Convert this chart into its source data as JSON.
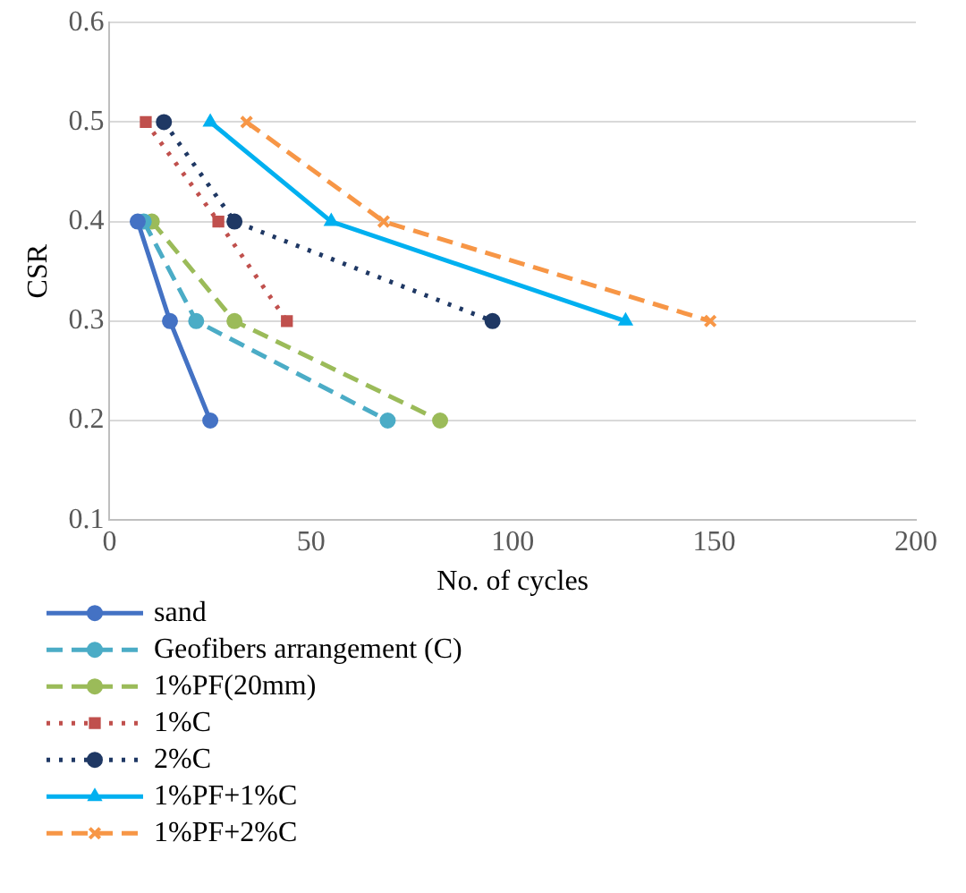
{
  "chart_data": {
    "type": "line",
    "xlabel": "No. of cycles",
    "ylabel": "CSR",
    "xlim": [
      0,
      200
    ],
    "xticks": [
      0,
      50,
      100,
      150,
      200
    ],
    "ylim": [
      0.1,
      0.6
    ],
    "yticks": [
      0.1,
      0.2,
      0.3,
      0.4,
      0.5,
      0.6
    ],
    "grid": "y",
    "legend": "bottom",
    "series": [
      {
        "name": "sand",
        "color": "#4472c4",
        "marker": "circle",
        "line_style": "solid",
        "x": [
          7,
          15,
          25
        ],
        "values": [
          0.4,
          0.3,
          0.2
        ]
      },
      {
        "name": "Geofibers arrangement (C)",
        "color": "#4bacc6",
        "marker": "circle",
        "line_style": "dashed",
        "x": [
          8.5,
          21.5,
          69
        ],
        "values": [
          0.4,
          0.3,
          0.2
        ]
      },
      {
        "name": "1%PF(20mm)",
        "color": "#9bbb59",
        "marker": "circle",
        "line_style": "dashed",
        "x": [
          10.5,
          31,
          82
        ],
        "values": [
          0.4,
          0.3,
          0.2
        ]
      },
      {
        "name": "1%C",
        "color": "#c0504d",
        "marker": "square",
        "line_style": "dotted",
        "x": [
          9,
          27,
          44
        ],
        "values": [
          0.5,
          0.4,
          0.3
        ]
      },
      {
        "name": "2%C",
        "color": "#1f3864",
        "marker": "circle",
        "line_style": "dotted",
        "x": [
          13.5,
          31,
          95
        ],
        "values": [
          0.5,
          0.4,
          0.3
        ]
      },
      {
        "name": "1%PF+1%C",
        "color": "#00b0f0",
        "marker": "triangle",
        "line_style": "solid",
        "x": [
          25,
          55,
          128
        ],
        "values": [
          0.5,
          0.4,
          0.3
        ]
      },
      {
        "name": "1%PF+2%C",
        "color": "#f79646",
        "marker": "cross",
        "line_style": "dashed",
        "x": [
          34,
          68,
          149
        ],
        "values": [
          0.5,
          0.4,
          0.3
        ]
      }
    ]
  }
}
